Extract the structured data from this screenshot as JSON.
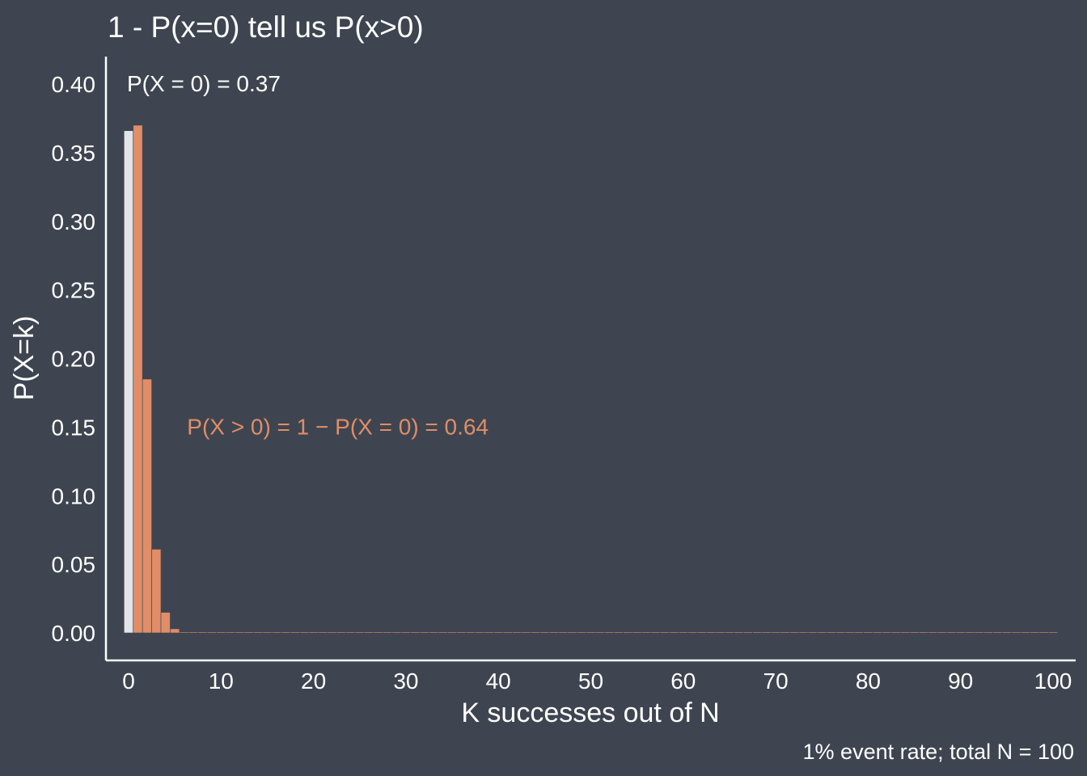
{
  "colors": {
    "background": "#3e4550",
    "foreground": "#ffffff",
    "highlight_bar": "#e3e4e6",
    "accent": "#e08d68"
  },
  "chart_data": {
    "type": "bar",
    "title": "1 - P(x=0) tell us P(x>0)",
    "xlabel": "K successes out of N",
    "ylabel": "P(X=k)",
    "caption": "1% event rate; total N = 100",
    "xlim": [
      0,
      100
    ],
    "ylim": [
      0,
      0.4
    ],
    "x_ticks": [
      0,
      10,
      20,
      30,
      40,
      50,
      60,
      70,
      80,
      90,
      100
    ],
    "y_ticks": [
      "0.00",
      "0.05",
      "0.10",
      "0.15",
      "0.20",
      "0.25",
      "0.30",
      "0.35",
      "0.40"
    ],
    "grid": false,
    "series": [
      {
        "k": [
          0
        ],
        "values": [
          0.366
        ],
        "color": "#e3e4e6"
      },
      {
        "k": [
          1,
          2,
          3,
          4,
          5,
          6,
          7,
          8,
          9,
          10
        ],
        "values": [
          0.37,
          0.185,
          0.061,
          0.015,
          0.003,
          0.0005,
          6e-05,
          7e-06,
          7e-07,
          6e-08
        ],
        "k_rest": [
          11,
          100
        ],
        "value_rest": 0,
        "color": "#e08d68"
      }
    ],
    "annotations": [
      {
        "text": "P(X = 0) = 0.37",
        "x": 0,
        "y": 0.4,
        "color": "#ffffff"
      },
      {
        "text": "P(X > 0) = 1 − P(X = 0) = 0.64",
        "x": 6.5,
        "y": 0.15,
        "color": "#e08d68"
      }
    ]
  }
}
